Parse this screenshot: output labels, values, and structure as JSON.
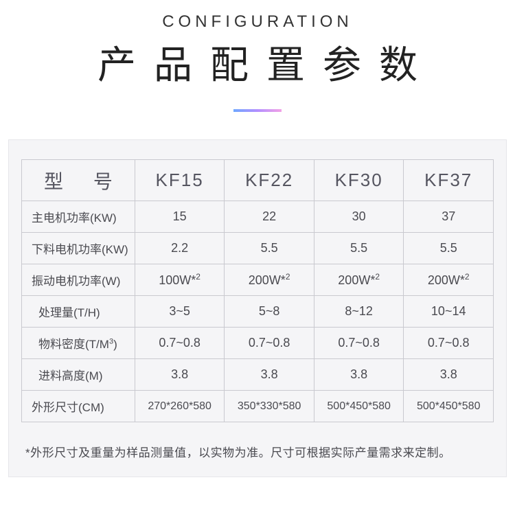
{
  "header": {
    "subtitle": "CONFIGURATION",
    "title": "产品配置参数"
  },
  "underline_gradient": [
    "#6fa8ff",
    "#b38fff",
    "#f3a2e6"
  ],
  "table": {
    "header_label": "型 号",
    "models": [
      "KF15",
      "KF22",
      "KF30",
      "KF37"
    ],
    "rows": [
      {
        "label": "主电机功率(KW)",
        "values": [
          "15",
          "22",
          "30",
          "37"
        ]
      },
      {
        "label": "下料电机功率(KW)",
        "values": [
          "2.2",
          "5.5",
          "5.5",
          "5.5"
        ]
      },
      {
        "label": "振动电机功率(W)",
        "values": [
          "100W*",
          "200W*",
          "200W*",
          "200W*"
        ],
        "sup": "2"
      },
      {
        "label": "处理量(T/H)",
        "values": [
          "3~5",
          "5~8",
          "8~12",
          "10~14"
        ]
      },
      {
        "label": "物料密度(T/M",
        "label_sup_end": "3",
        "label_after": ")",
        "values": [
          "0.7~0.8",
          "0.7~0.8",
          "0.7~0.8",
          "0.7~0.8"
        ]
      },
      {
        "label": "进料高度(M)",
        "values": [
          "3.8",
          "3.8",
          "3.8",
          "3.8"
        ]
      },
      {
        "label": "外形尺寸(CM)",
        "values": [
          "270*260*580",
          "350*330*580",
          "500*450*580",
          "500*450*580"
        ],
        "small": true
      }
    ]
  },
  "footnote": "*外形尺寸及重量为样品测量值，以实物为准。尺寸可根据实际产量需求来定制。",
  "style": {
    "page_bg": "#ffffff",
    "panel_bg": "#f5f5f7",
    "panel_border": "#e6e6ea",
    "cell_border": "#c9c9cf",
    "text_color": "#4a4a50",
    "header_text_color": "#555560",
    "title_color": "#222222",
    "subtitle_color": "#333333",
    "subtitle_fontsize": 24,
    "title_fontsize": 56,
    "th_fontsize": 26,
    "td_fontsize": 18,
    "label_fontsize": 17,
    "footnote_fontsize": 17
  }
}
